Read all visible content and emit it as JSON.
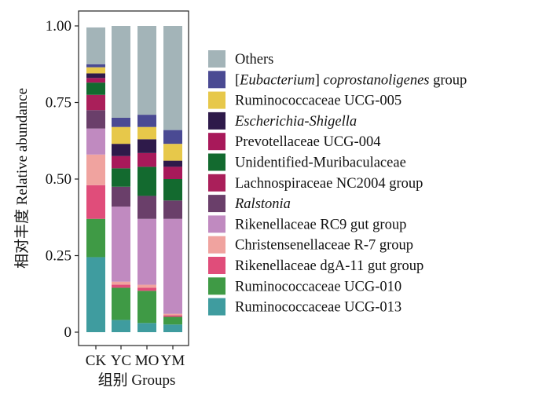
{
  "chart_data": {
    "type": "bar",
    "stacked": true,
    "title": "",
    "ylabel_zh": "相对丰度",
    "ylabel_en": "Relative abundance",
    "xlabel_zh": "组别",
    "xlabel_en": "Groups",
    "ylim": [
      0,
      1
    ],
    "yticks": [
      0,
      0.25,
      0.5,
      0.75,
      1.0
    ],
    "ytick_labels": [
      "0",
      "0.25",
      "0.50",
      "0.75",
      "1.00"
    ],
    "categories": [
      "CK",
      "YC",
      "MO",
      "YM"
    ],
    "grid": false,
    "legend_position": "right",
    "series": [
      {
        "name": "Ruminococcaceae UCG-013",
        "color": "#3f9c9f",
        "values": [
          0.245,
          0.04,
          0.03,
          0.025
        ]
      },
      {
        "name": "Ruminococcaceae UCG-010",
        "color": "#3f9a45",
        "values": [
          0.125,
          0.105,
          0.105,
          0.025
        ]
      },
      {
        "name": "Rikenellaceae dgA-11 gut group",
        "color": "#e04d7a",
        "values": [
          0.11,
          0.01,
          0.01,
          0.005
        ]
      },
      {
        "name": "Christensenellaceae R-7 group",
        "color": "#f0a39f",
        "values": [
          0.1,
          0.01,
          0.01,
          0.005
        ]
      },
      {
        "name": "Rikenellaceae RC9 gut group",
        "color": "#c08ac0",
        "values": [
          0.085,
          0.245,
          0.215,
          0.31
        ]
      },
      {
        "name": "Ralstonia",
        "name_italic": true,
        "color": "#6a3f6a",
        "values": [
          0.06,
          0.065,
          0.075,
          0.06
        ]
      },
      {
        "name": "Lachnospiraceae NC2004 group",
        "color": "#aa1f5a",
        "values": [
          0.05,
          0.0,
          0.0,
          0.0
        ]
      },
      {
        "name": "Unidentified-Muribaculaceae",
        "color": "#136a2f",
        "values": [
          0.04,
          0.06,
          0.095,
          0.07
        ]
      },
      {
        "name": "Prevotellaceae UCG-004",
        "color": "#a8195a",
        "values": [
          0.015,
          0.04,
          0.045,
          0.04
        ]
      },
      {
        "name": "Escherichia-Shigella",
        "name_italic": true,
        "color": "#2e1a4a",
        "values": [
          0.015,
          0.04,
          0.045,
          0.02
        ]
      },
      {
        "name": "Ruminococcaceae UCG-005",
        "color": "#e7c84a",
        "values": [
          0.02,
          0.055,
          0.04,
          0.055
        ]
      },
      {
        "name": "[Eubacterium] coprostanoligenes group",
        "name_parts": [
          {
            "t": "[",
            "i": false
          },
          {
            "t": "Eubacterium",
            "i": true
          },
          {
            "t": "] ",
            "i": false
          },
          {
            "t": "coprostanoligenes",
            "i": true
          },
          {
            "t": " group",
            "i": false
          }
        ],
        "color": "#4a4a93",
        "values": [
          0.01,
          0.03,
          0.04,
          0.045
        ]
      },
      {
        "name": "Others",
        "color": "#a3b4b8",
        "values": [
          0.12,
          0.3,
          0.29,
          0.34
        ]
      }
    ]
  }
}
